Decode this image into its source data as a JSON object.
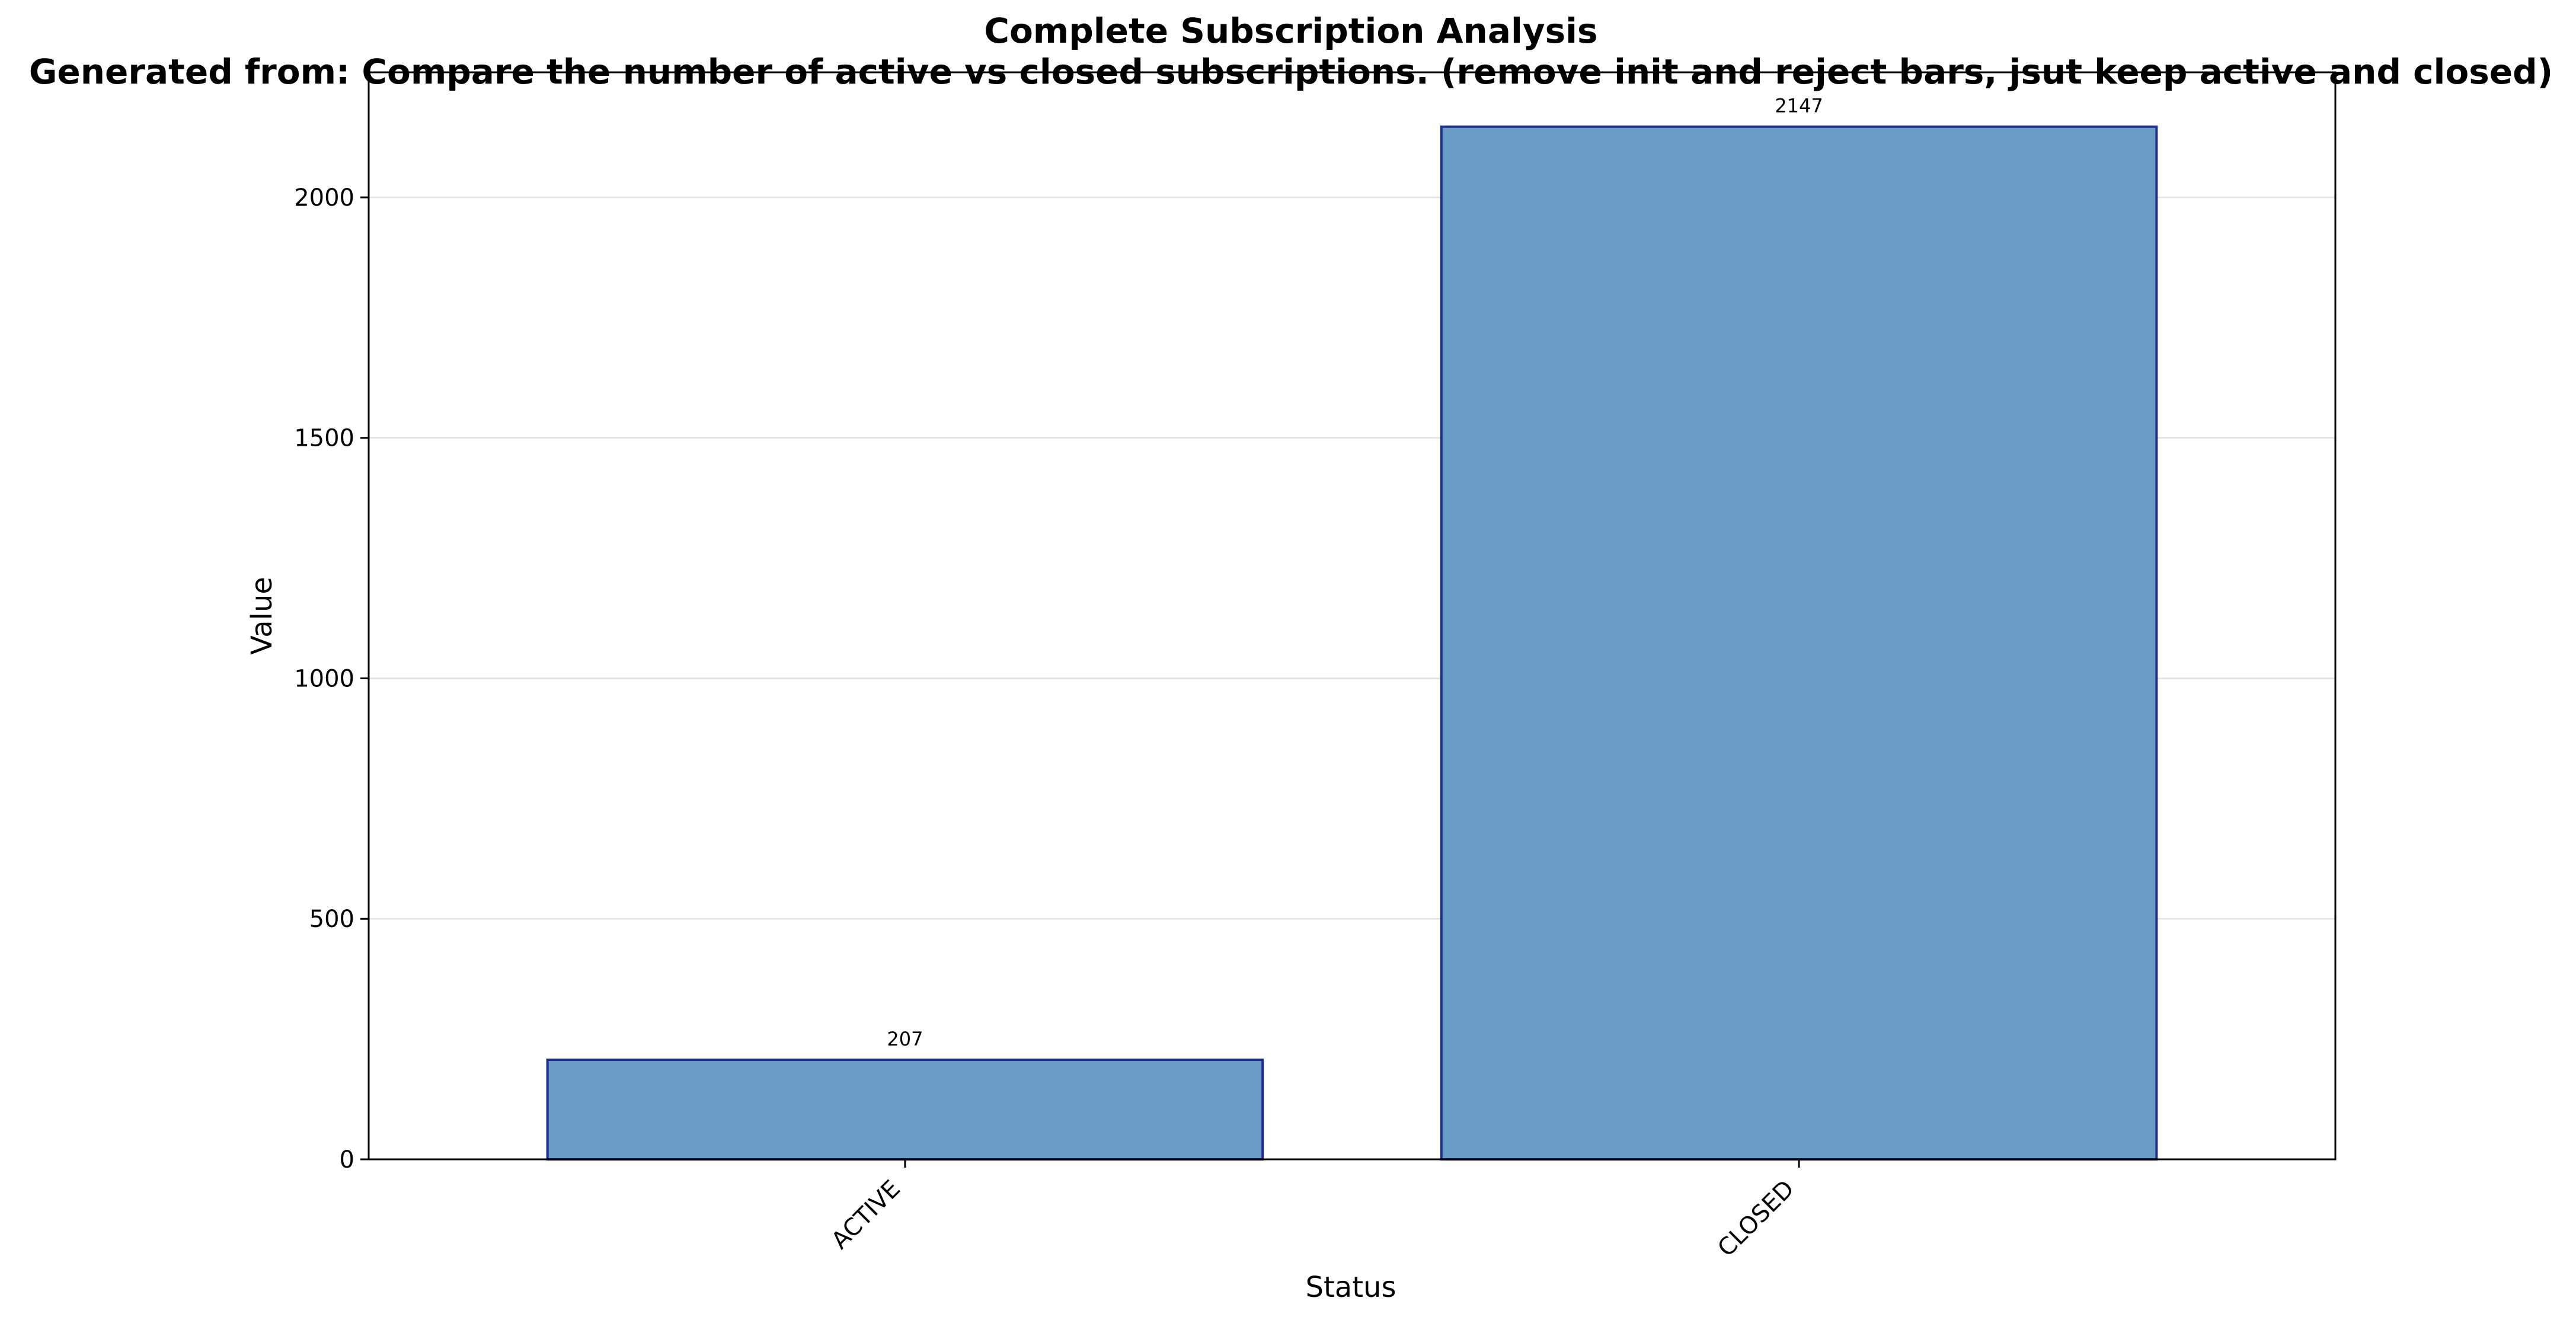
{
  "chart_data": {
    "type": "bar",
    "title": "Complete Subscription Analysis",
    "subtitle": "Generated from: Compare the number of active vs closed subscriptions. (remove init and reject bars, jsut keep active and closed)",
    "xlabel": "Status",
    "ylabel": "Value",
    "categories": [
      "ACTIVE",
      "CLOSED"
    ],
    "values": [
      207,
      2147
    ],
    "data_labels": [
      "207",
      "2147"
    ],
    "ylim": [
      0,
      2260
    ],
    "yticks": [
      0,
      500,
      1000,
      1500,
      2000
    ],
    "grid": "horizontal",
    "legend": "none",
    "colors": {
      "bar_fill": "#6a9bc4",
      "bar_edge": "#1f2e88",
      "grid": "#e2e2e2",
      "axis": "#000000"
    }
  }
}
